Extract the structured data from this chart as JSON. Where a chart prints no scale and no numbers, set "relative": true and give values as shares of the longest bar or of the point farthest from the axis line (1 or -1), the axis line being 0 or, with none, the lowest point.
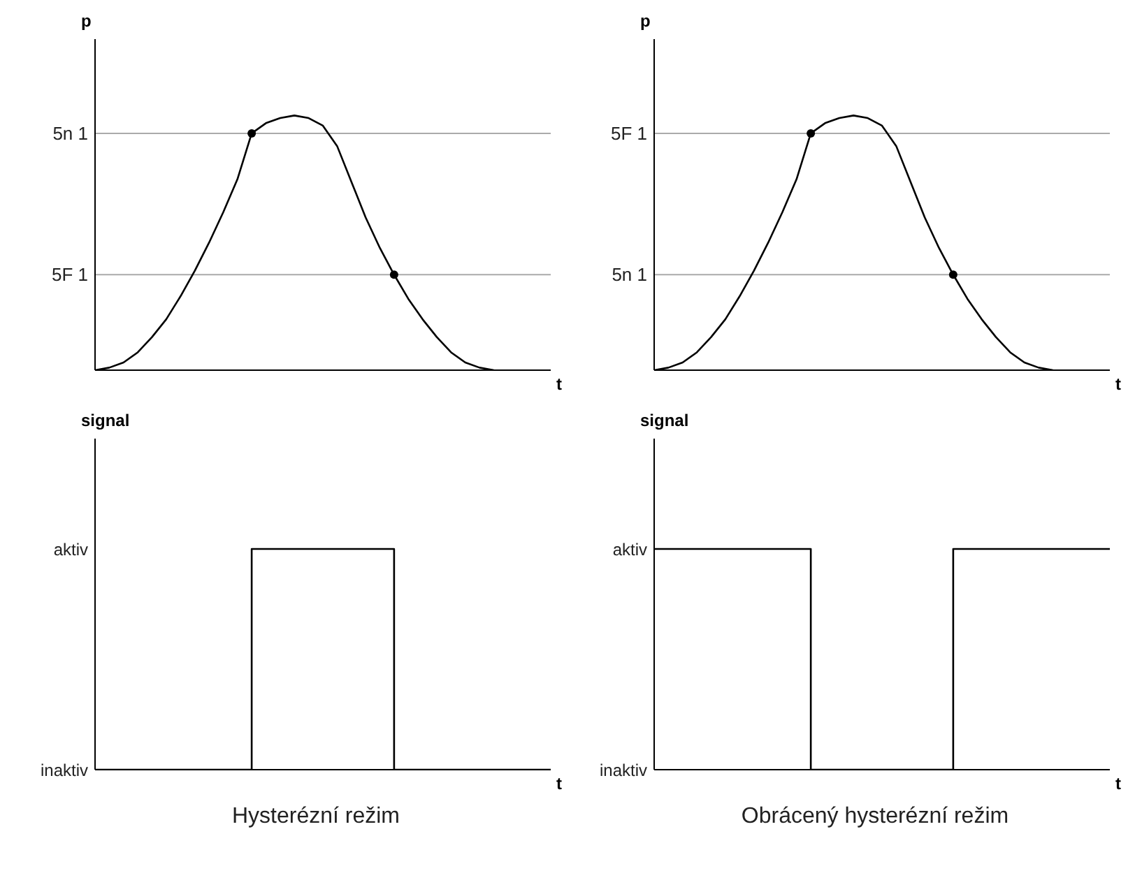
{
  "chart_data": [
    {
      "type": "line",
      "relative": true,
      "ylabel": "p",
      "xlabel": "t",
      "categories": [
        null,
        null,
        null,
        null,
        null,
        null,
        null,
        null,
        null,
        null,
        null,
        null,
        null,
        null,
        null,
        null,
        null,
        null,
        null,
        null,
        null,
        null,
        null,
        null,
        null,
        null,
        null,
        null,
        null
      ],
      "series": [
        {
          "type": "line",
          "color": "#000000",
          "values": [
            0,
            0.01,
            0.03,
            0.07,
            0.13,
            0.2,
            0.29,
            0.39,
            0.5,
            0.62,
            0.75,
            0.93,
            0.97,
            0.99,
            1.0,
            0.99,
            0.96,
            0.88,
            0.74,
            0.6,
            0.48,
            0.375,
            0.28,
            0.2,
            0.13,
            0.07,
            0.03,
            0.01,
            0
          ]
        }
      ],
      "ref_lines": [
        {
          "axis": "y",
          "value": 0.93,
          "label": "5n 1",
          "color": "#aaaaaa"
        },
        {
          "axis": "y",
          "value": 0.375,
          "label": "5F 1",
          "color": "#aaaaaa"
        }
      ]
    },
    {
      "type": "line",
      "relative": true,
      "ylabel": "p",
      "xlabel": "t",
      "categories": [
        null,
        null,
        null,
        null,
        null,
        null,
        null,
        null,
        null,
        null,
        null,
        null,
        null,
        null,
        null,
        null,
        null,
        null,
        null,
        null,
        null,
        null,
        null,
        null,
        null,
        null,
        null,
        null,
        null
      ],
      "series": [
        {
          "type": "line",
          "color": "#000000",
          "values": [
            0,
            0.01,
            0.03,
            0.07,
            0.13,
            0.2,
            0.29,
            0.39,
            0.5,
            0.62,
            0.75,
            0.93,
            0.97,
            0.99,
            1.0,
            0.99,
            0.96,
            0.88,
            0.74,
            0.6,
            0.48,
            0.375,
            0.28,
            0.2,
            0.13,
            0.07,
            0.03,
            0.01,
            0
          ]
        }
      ],
      "ref_lines": [
        {
          "axis": "y",
          "value": 0.93,
          "label": "5F 1",
          "color": "#aaaaaa"
        },
        {
          "axis": "y",
          "value": 0.375,
          "label": "5n 1",
          "color": "#aaaaaa"
        }
      ]
    },
    {
      "type": "step",
      "relative": true,
      "ylabel": "signal",
      "xlabel": "t",
      "title": "Hysterézní režim",
      "annotations": [
        "aktiv",
        "inaktiv"
      ],
      "categories": [
        null,
        null,
        null,
        null,
        null,
        null,
        null,
        null,
        null,
        null,
        null,
        null,
        null,
        null,
        null,
        null,
        null,
        null,
        null,
        null,
        null,
        null,
        null,
        null,
        null,
        null,
        null,
        null,
        null,
        null,
        null,
        null,
        null
      ],
      "series": [
        {
          "type": "step",
          "color": "#000000",
          "values": [
            0,
            0,
            0,
            0,
            0,
            0,
            0,
            0,
            0,
            0,
            0,
            1,
            1,
            1,
            1,
            1,
            1,
            1,
            1,
            1,
            1,
            0,
            0,
            0,
            0,
            0,
            0,
            0,
            0,
            0,
            0,
            0,
            0
          ]
        }
      ]
    },
    {
      "type": "step",
      "relative": true,
      "ylabel": "signal",
      "xlabel": "t",
      "title": "Obrácený hysterézní režim",
      "annotations": [
        "aktiv",
        "inaktiv"
      ],
      "categories": [
        null,
        null,
        null,
        null,
        null,
        null,
        null,
        null,
        null,
        null,
        null,
        null,
        null,
        null,
        null,
        null,
        null,
        null,
        null,
        null,
        null,
        null,
        null,
        null,
        null,
        null,
        null,
        null,
        null,
        null,
        null,
        null,
        null
      ],
      "series": [
        {
          "type": "step",
          "color": "#000000",
          "values": [
            1,
            1,
            1,
            1,
            1,
            1,
            1,
            1,
            1,
            1,
            1,
            0,
            0,
            0,
            0,
            0,
            0,
            0,
            0,
            0,
            0,
            1,
            1,
            1,
            1,
            1,
            1,
            1,
            1,
            1,
            1,
            1,
            1
          ]
        }
      ]
    }
  ]
}
